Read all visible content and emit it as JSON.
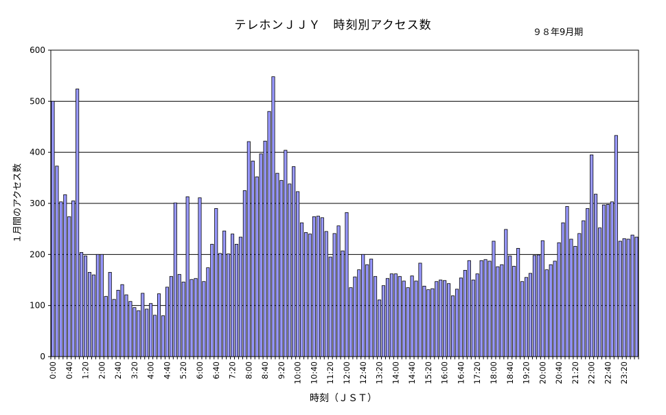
{
  "chart_data": {
    "type": "bar",
    "title": "テレホンＪＪＹ　時刻別アクセス数",
    "subtitle": "９８年9月期",
    "xlabel": "時刻（ＪＳＴ）",
    "ylabel": "１月間のアクセス数",
    "ylim": [
      0,
      600
    ],
    "yticks": [
      0,
      100,
      200,
      300,
      400,
      500,
      600
    ],
    "xtick_labels": [
      "0:00",
      "0:40",
      "1:20",
      "2:00",
      "2:40",
      "3:20",
      "4:00",
      "4:40",
      "5:20",
      "6:00",
      "6:40",
      "7:20",
      "8:00",
      "8:40",
      "9:20",
      "10:00",
      "10:40",
      "11:20",
      "12:00",
      "12:40",
      "13:20",
      "14:00",
      "14:40",
      "15:20",
      "16:00",
      "16:40",
      "17:20",
      "18:00",
      "18:40",
      "19:20",
      "20:00",
      "20:40",
      "21:20",
      "22:00",
      "22:40",
      "23:20"
    ],
    "grid": true,
    "bar_color": "#9999ff",
    "values": [
      500,
      373,
      303,
      317,
      274,
      305,
      524,
      204,
      197,
      165,
      160,
      200,
      200,
      118,
      165,
      112,
      130,
      141,
      121,
      108,
      96,
      90,
      124,
      93,
      104,
      81,
      123,
      80,
      136,
      157,
      301,
      161,
      146,
      313,
      151,
      153,
      311,
      147,
      174,
      220,
      290,
      202,
      246,
      201,
      240,
      220,
      234,
      325,
      421,
      383,
      352,
      397,
      422,
      480,
      548,
      359,
      345,
      404,
      338,
      372,
      323,
      262,
      243,
      240,
      274,
      275,
      272,
      245,
      195,
      241,
      256,
      207,
      282,
      135,
      156,
      170,
      200,
      180,
      191,
      157,
      111,
      139,
      153,
      162,
      162,
      157,
      148,
      135,
      158,
      148,
      183,
      138,
      131,
      133,
      147,
      150,
      149,
      143,
      119,
      132,
      154,
      169,
      188,
      150,
      162,
      188,
      190,
      187,
      226,
      176,
      180,
      249,
      197,
      177,
      212,
      147,
      155,
      163,
      198,
      199,
      227,
      170,
      180,
      187,
      223,
      262,
      294,
      230,
      216,
      241,
      266,
      290,
      395,
      318,
      252,
      297,
      298,
      303,
      433,
      226,
      231,
      230,
      238,
      234
    ]
  }
}
